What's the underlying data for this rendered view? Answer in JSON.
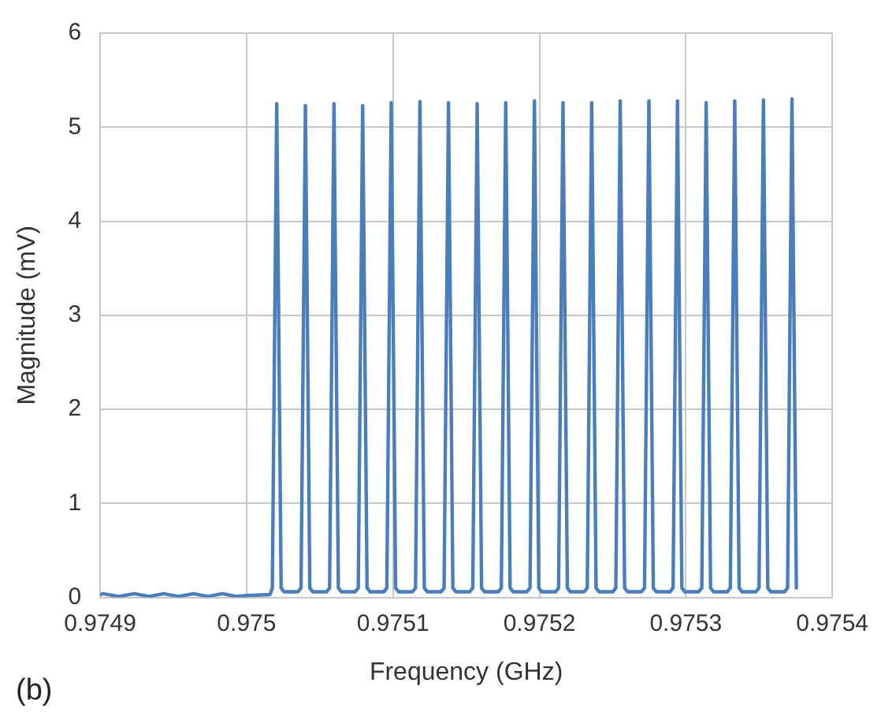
{
  "chart_data": {
    "type": "line",
    "xlabel": "Frequency (GHz)",
    "ylabel": "Magnitude (mV)",
    "annotations": [
      "(b)"
    ],
    "xlim": [
      0.9749,
      0.9754
    ],
    "xticks": [
      0.9749,
      0.975,
      0.9751,
      0.9752,
      0.9753,
      0.9754
    ],
    "ylim": [
      0,
      6
    ],
    "yticks": [
      0,
      1,
      2,
      3,
      4,
      5,
      6
    ],
    "grid": true,
    "legend": false,
    "marker": "none",
    "line_style": "solid",
    "series": [
      {
        "color": "#4a7ebb",
        "x": [
          0.9749,
          0.9749019,
          0.9749125,
          0.9749234,
          0.9749335,
          0.9749434,
          0.9749535,
          0.9749638,
          0.9749735,
          0.9749835,
          0.974993,
          0.975,
          0.975016,
          0.9750176,
          0.9750206,
          0.9750236,
          0.9750256,
          0.9750351,
          0.9750372,
          0.9750402,
          0.9750432,
          0.9750452,
          0.9750547,
          0.9750567,
          0.9750597,
          0.9750627,
          0.9750647,
          0.9750742,
          0.9750763,
          0.9750793,
          0.9750823,
          0.9750843,
          0.9750938,
          0.9750958,
          0.9750988,
          0.9751018,
          0.9751038,
          0.9751133,
          0.9751154,
          0.9751184,
          0.9751214,
          0.9751234,
          0.9751329,
          0.9751349,
          0.9751379,
          0.9751409,
          0.9751429,
          0.9751524,
          0.9751545,
          0.9751575,
          0.9751605,
          0.9751625,
          0.975172,
          0.975174,
          0.975177,
          0.97518,
          0.975182,
          0.9751915,
          0.9751936,
          0.9751966,
          0.9751996,
          0.9752016,
          0.9752111,
          0.9752131,
          0.9752161,
          0.9752191,
          0.9752211,
          0.9752306,
          0.9752327,
          0.9752357,
          0.9752387,
          0.9752407,
          0.9752502,
          0.9752522,
          0.9752552,
          0.9752582,
          0.9752602,
          0.9752697,
          0.9752718,
          0.9752748,
          0.9752778,
          0.9752798,
          0.9752893,
          0.9752913,
          0.9752943,
          0.9752973,
          0.9752993,
          0.9753088,
          0.9753109,
          0.9753139,
          0.9753169,
          0.9753189,
          0.9753284,
          0.9753304,
          0.9753334,
          0.9753364,
          0.9753384,
          0.9753479,
          0.97535,
          0.975353,
          0.975356,
          0.975358,
          0.9753675,
          0.9753695,
          0.9753725,
          0.9753755
        ],
        "values": [
          0.03,
          0.04,
          0.01,
          0.04,
          0.01,
          0.04,
          0.01,
          0.04,
          0.01,
          0.04,
          0.01,
          0.02,
          0.03,
          0.1,
          5.25,
          0.1,
          0.06,
          0.06,
          0.1,
          5.23,
          0.1,
          0.06,
          0.06,
          0.1,
          5.25,
          0.1,
          0.06,
          0.06,
          0.1,
          5.23,
          0.1,
          0.06,
          0.06,
          0.1,
          5.26,
          0.1,
          0.06,
          0.06,
          0.1,
          5.27,
          0.1,
          0.06,
          0.06,
          0.1,
          5.26,
          0.1,
          0.06,
          0.06,
          0.1,
          5.25,
          0.1,
          0.06,
          0.06,
          0.1,
          5.26,
          0.1,
          0.06,
          0.06,
          0.1,
          5.28,
          0.1,
          0.06,
          0.06,
          0.1,
          5.26,
          0.1,
          0.06,
          0.06,
          0.1,
          5.26,
          0.1,
          0.06,
          0.06,
          0.1,
          5.28,
          0.1,
          0.06,
          0.06,
          0.1,
          5.28,
          0.1,
          0.06,
          0.06,
          0.1,
          5.28,
          0.1,
          0.06,
          0.06,
          0.1,
          5.26,
          0.1,
          0.06,
          0.06,
          0.1,
          5.28,
          0.1,
          0.06,
          0.06,
          0.1,
          5.29,
          0.1,
          0.06,
          0.06,
          0.1,
          5.3,
          0.1
        ]
      }
    ]
  }
}
